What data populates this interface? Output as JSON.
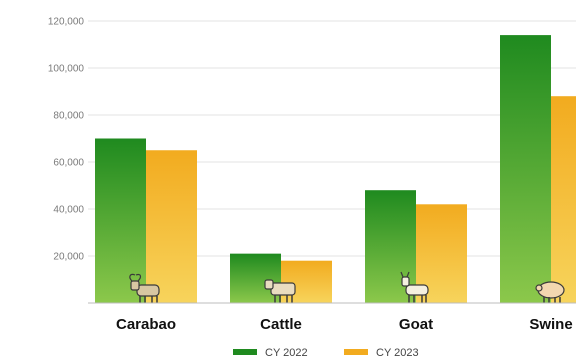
{
  "chart_data": {
    "type": "bar",
    "categories": [
      "Carabao",
      "Cattle",
      "Goat",
      "Swine"
    ],
    "series": [
      {
        "name": "CY 2022",
        "values": [
          70000,
          21000,
          48000,
          114000
        ]
      },
      {
        "name": "CY 2023",
        "values": [
          65000,
          18000,
          42000,
          88000
        ]
      }
    ],
    "title": "",
    "xlabel": "",
    "ylabel": "",
    "ylim": [
      0,
      120000
    ],
    "yticks": [
      {
        "value": 20000,
        "label": "20,000"
      },
      {
        "value": 40000,
        "label": "40,000"
      },
      {
        "value": 60000,
        "label": "60,000"
      },
      {
        "value": 80000,
        "label": "80,000"
      },
      {
        "value": 100000,
        "label": "100,000"
      },
      {
        "value": 120000,
        "label": "120,000"
      }
    ],
    "grid": true,
    "legend": "bottom-center",
    "icons": [
      "carabao-icon",
      "cattle-icon",
      "goat-icon",
      "swine-icon"
    ],
    "colors": {
      "series_1_top": "#1f8a1f",
      "series_1_bottom": "#8cc84b",
      "series_2_top": "#f2ab1f",
      "series_2_bottom": "#f7d45c",
      "grid": "#e3e3e3",
      "axis": "#bdbdbd"
    }
  }
}
